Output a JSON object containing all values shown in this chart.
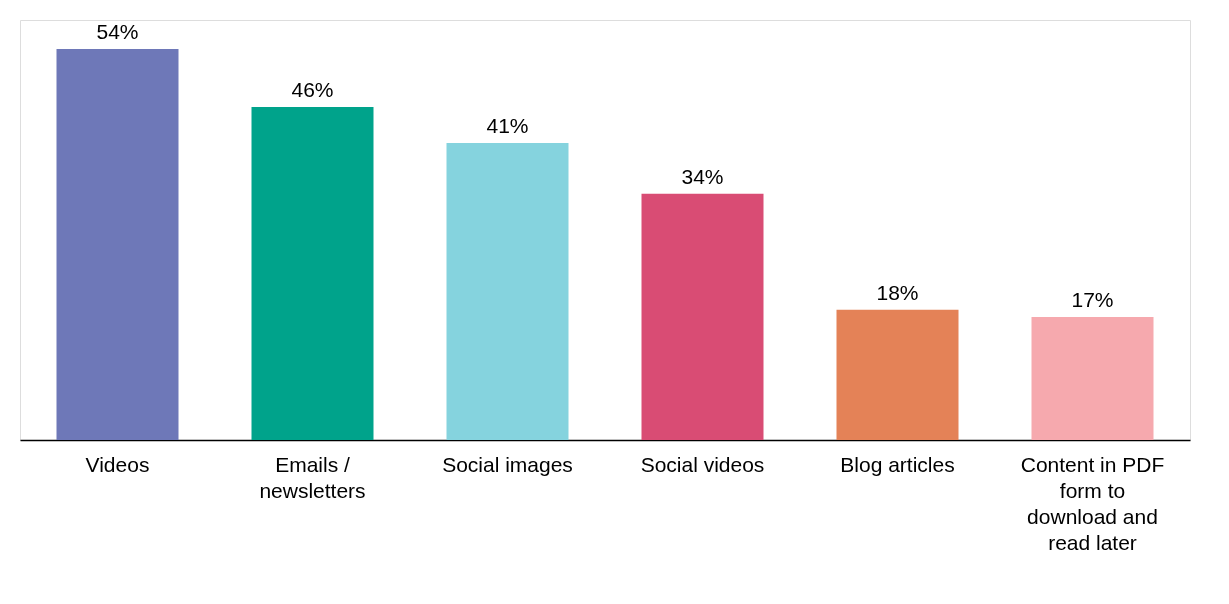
{
  "chart_data": {
    "type": "bar",
    "categories": [
      "Videos",
      "Emails / newsletters",
      "Social images",
      "Social videos",
      "Blog articles",
      "Content in PDF form to download and read later"
    ],
    "values": [
      54,
      46,
      41,
      34,
      18,
      17
    ],
    "colors": [
      "#6e78b8",
      "#00a38b",
      "#85d3de",
      "#d94c74",
      "#e48257",
      "#f6a9ae"
    ],
    "value_labels": [
      "54%",
      "46%",
      "41%",
      "34%",
      "18%",
      "17%"
    ],
    "ylim": [
      0,
      58
    ],
    "tick_labels": "x",
    "grid": false,
    "legend": false
  }
}
